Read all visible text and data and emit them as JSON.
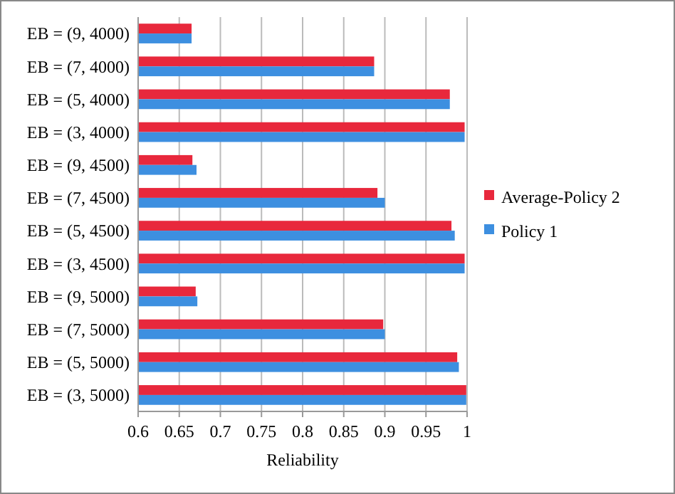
{
  "chart_data": {
    "type": "bar",
    "orientation": "horizontal",
    "xlabel": "Reliability",
    "categories": [
      "EB = (9, 4000)",
      "EB = (7, 4000)",
      "EB = (5, 4000)",
      "EB = (3, 4000)",
      "EB = (9, 4500)",
      "EB = (7, 4500)",
      "EB = (5, 4500)",
      "EB = (3, 4500)",
      "EB = (9, 5000)",
      "EB = (7, 5000)",
      "EB = (5, 5000)",
      "EB = (3, 5000)"
    ],
    "series": [
      {
        "name": "Average-Policy 2",
        "color": "#e8283c",
        "values": [
          0.665,
          0.887,
          0.979,
          0.997,
          0.666,
          0.891,
          0.981,
          0.997,
          0.67,
          0.898,
          0.988,
          0.999
        ]
      },
      {
        "name": "Policy 1",
        "color": "#3d8fe0",
        "values": [
          0.665,
          0.887,
          0.979,
          0.997,
          0.671,
          0.9,
          0.985,
          0.997,
          0.672,
          0.9,
          0.99,
          0.999
        ]
      }
    ],
    "xlim": [
      0.6,
      1
    ],
    "xticks": [
      0.6,
      0.65,
      0.7,
      0.75,
      0.8,
      0.85,
      0.9,
      0.95,
      1
    ],
    "grid": "x",
    "legend": "right"
  }
}
